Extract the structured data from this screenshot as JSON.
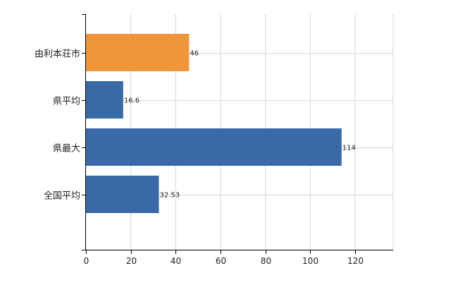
{
  "chart_data": {
    "type": "bar",
    "orientation": "horizontal",
    "categories": [
      "由利本荘市",
      "県平均",
      "県最大",
      "全国平均"
    ],
    "values": [
      46,
      16.6,
      114,
      32.53
    ],
    "value_labels": [
      "46",
      "16.6",
      "114",
      "32.53"
    ],
    "xlim": [
      0,
      137
    ],
    "x_ticks": [
      0,
      20,
      40,
      60,
      80,
      100,
      120
    ],
    "x_tick_labels": [
      "0",
      "20",
      "40",
      "60",
      "80",
      "100",
      "120"
    ],
    "grid": true,
    "legend": "none",
    "highlight_index": 0
  },
  "colors": {
    "highlight": "#f0963a",
    "bar": "#3a69a8",
    "grid": "#d6d6d6",
    "axis": "#000000",
    "text": "#222222"
  }
}
